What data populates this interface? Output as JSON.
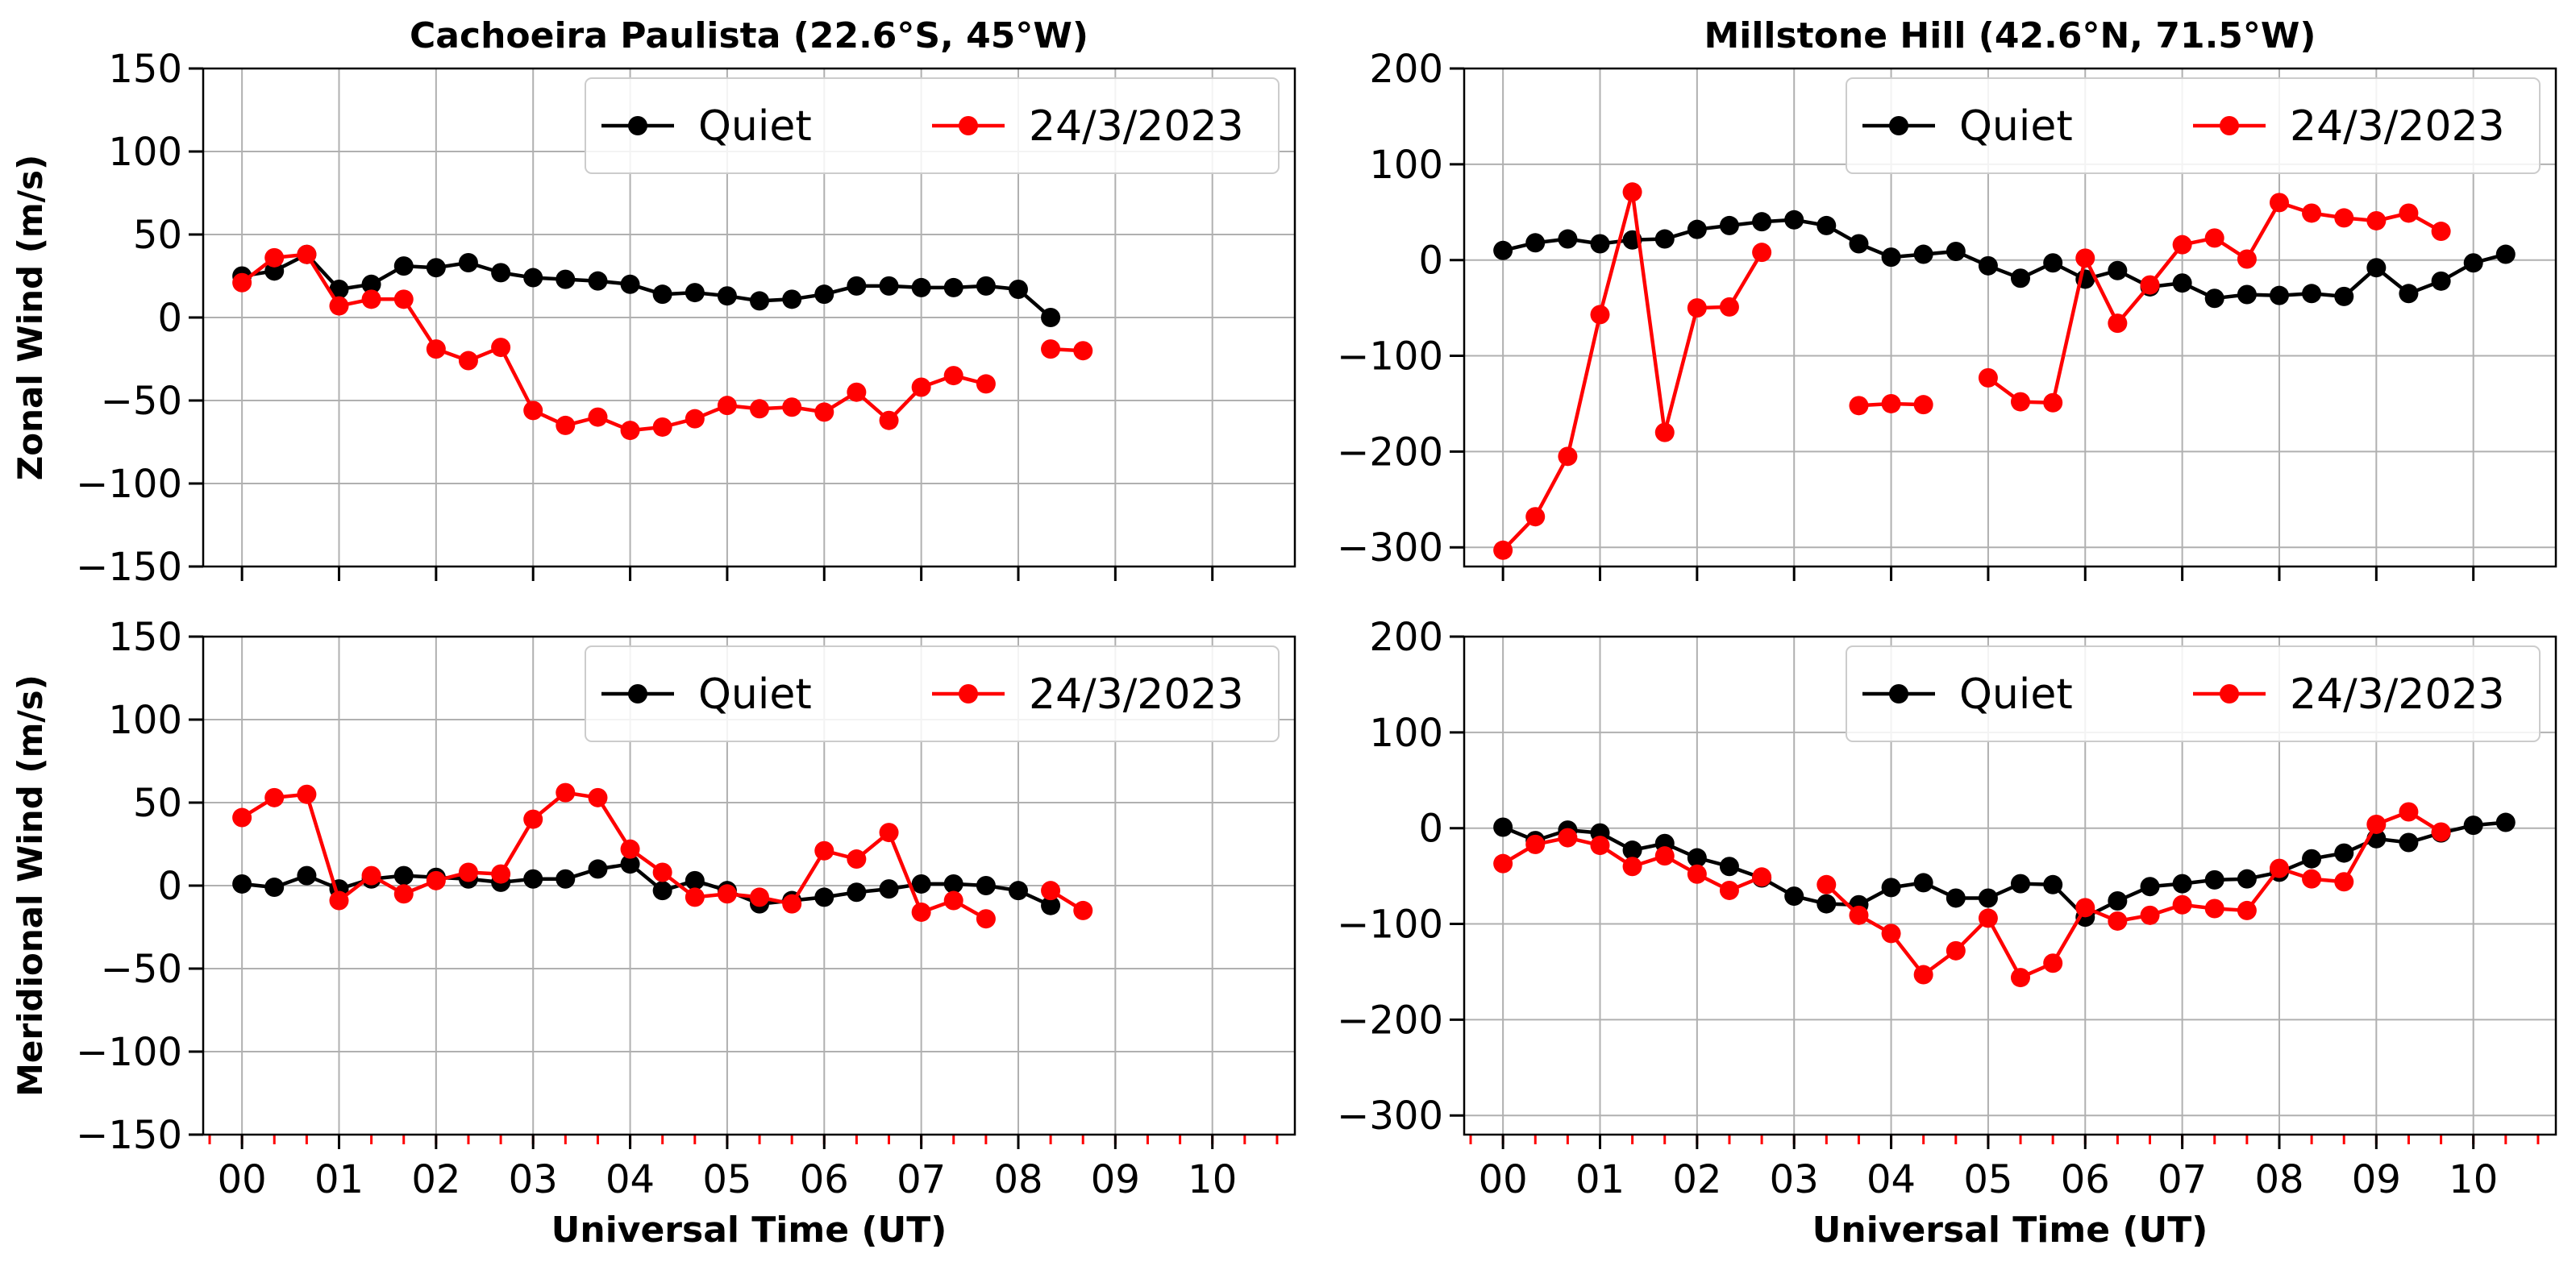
{
  "figure_colors": {
    "quiet": "#000000",
    "storm": "#ff0000",
    "grid": "#b0b0b0"
  },
  "shared_xlabel": "Universal Time (UT)",
  "chart_data": [
    {
      "id": "cp-zonal",
      "type": "line",
      "title": "Cachoeira Paulista (22.6°S, 45°W)",
      "xlabel": "",
      "ylabel": "Zonal Wind (m/s)",
      "xlim": [
        -0.4,
        10.85
      ],
      "ylim": [
        -150,
        150
      ],
      "xticks": [
        0,
        1,
        2,
        3,
        4,
        5,
        6,
        7,
        8,
        9,
        10
      ],
      "xtick_labels": [],
      "yticks": [
        -150,
        -100,
        -50,
        0,
        50,
        100,
        150
      ],
      "ytick_labels": [
        "−150",
        "−100",
        "−50",
        "0",
        "50",
        "100",
        "150"
      ],
      "minor_ticks": false,
      "legend": {
        "position": "top-right",
        "entries": [
          "Quiet",
          "24/3/2023"
        ]
      },
      "series": [
        {
          "name": "Quiet",
          "color": "#000000",
          "x": [
            0,
            0.333,
            0.667,
            1,
            1.333,
            1.667,
            2,
            2.333,
            2.667,
            3,
            3.333,
            3.667,
            4,
            4.333,
            4.667,
            5,
            5.333,
            5.667,
            6,
            6.333,
            6.667,
            7,
            7.333,
            7.667,
            8,
            8.333
          ],
          "y": [
            25,
            28,
            38,
            17,
            20,
            31,
            30,
            33,
            27,
            24,
            23,
            22,
            20,
            14,
            15,
            13,
            10,
            11,
            14,
            19,
            19,
            18,
            18,
            19,
            17,
            0
          ]
        },
        {
          "name": "24/3/2023",
          "color": "#ff0000",
          "x": [
            0,
            0.333,
            0.667,
            1,
            1.333,
            1.667,
            2,
            2.333,
            2.667,
            3,
            3.333,
            3.667,
            4,
            4.333,
            4.667,
            5,
            5.333,
            5.667,
            6,
            6.333,
            6.667,
            7,
            7.333,
            7.667,
            null,
            8.333,
            8.667
          ],
          "y": [
            21,
            36,
            38,
            7,
            11,
            11,
            -19,
            -26,
            -18,
            -56,
            -65,
            -60,
            -68,
            -66,
            -61,
            -53,
            -55,
            -54,
            -57,
            -45,
            -62,
            -42,
            -35,
            -40,
            null,
            -19,
            -20
          ]
        }
      ]
    },
    {
      "id": "mh-zonal",
      "type": "line",
      "title": "Millstone Hill (42.6°N, 71.5°W)",
      "xlabel": "",
      "ylabel": "",
      "xlim": [
        -0.4,
        10.85
      ],
      "ylim": [
        -320,
        200
      ],
      "xticks": [
        0,
        1,
        2,
        3,
        4,
        5,
        6,
        7,
        8,
        9,
        10
      ],
      "xtick_labels": [],
      "yticks": [
        -300,
        -200,
        -100,
        0,
        100,
        200
      ],
      "ytick_labels": [
        "−300",
        "−200",
        "−100",
        "0",
        "100",
        "200"
      ],
      "minor_ticks": false,
      "legend": {
        "position": "top-right",
        "entries": [
          "Quiet",
          "24/3/2023"
        ]
      },
      "series": [
        {
          "name": "Quiet",
          "color": "#000000",
          "x": [
            0,
            0.333,
            0.667,
            1,
            1.333,
            1.667,
            2,
            2.333,
            2.667,
            3,
            3.333,
            3.667,
            4,
            4.333,
            4.667,
            5,
            5.333,
            5.667,
            6,
            6.333,
            6.667,
            7,
            7.333,
            7.667,
            8,
            8.333,
            8.667,
            9,
            9.333,
            9.667,
            10,
            10.333
          ],
          "y": [
            10,
            18,
            22,
            17,
            21,
            22,
            32,
            36,
            40,
            42,
            36,
            17,
            3,
            6,
            9,
            -6,
            -19,
            -3,
            -20,
            -11,
            -28,
            -24,
            -40,
            -36,
            -37,
            -35,
            -38,
            -8,
            -35,
            -22,
            -3,
            6
          ]
        },
        {
          "name": "24/3/2023",
          "color": "#ff0000",
          "x": [
            0,
            0.333,
            0.667,
            1,
            1.333,
            1.667,
            2,
            2.333,
            2.667,
            null,
            3.667,
            4,
            4.333,
            null,
            5,
            5.333,
            5.667,
            6,
            6.333,
            6.667,
            7,
            7.333,
            7.667,
            8,
            8.333,
            8.667,
            9,
            9.333,
            9.667
          ],
          "y": [
            -303,
            -268,
            -205,
            -57,
            71,
            -180,
            -50,
            -49,
            8,
            null,
            -152,
            -150,
            -151,
            null,
            -123,
            -148,
            -149,
            2,
            -66,
            -26,
            16,
            23,
            1,
            60,
            49,
            44,
            41,
            49,
            30
          ]
        }
      ]
    },
    {
      "id": "cp-meridional",
      "type": "line",
      "title": "",
      "xlabel": "Universal Time (UT)",
      "ylabel": "Meridional Wind (m/s)",
      "xlim": [
        -0.4,
        10.85
      ],
      "ylim": [
        -150,
        150
      ],
      "xticks": [
        0,
        1,
        2,
        3,
        4,
        5,
        6,
        7,
        8,
        9,
        10
      ],
      "xtick_labels": [
        "00",
        "01",
        "02",
        "03",
        "04",
        "05",
        "06",
        "07",
        "08",
        "09",
        "10"
      ],
      "yticks": [
        -150,
        -100,
        -50,
        0,
        50,
        100,
        150
      ],
      "ytick_labels": [
        "−150",
        "−100",
        "−50",
        "0",
        "50",
        "100",
        "150"
      ],
      "minor_ticks": true,
      "legend": {
        "position": "top-right",
        "entries": [
          "Quiet",
          "24/3/2023"
        ]
      },
      "series": [
        {
          "name": "Quiet",
          "color": "#000000",
          "x": [
            0,
            0.333,
            0.667,
            1,
            1.333,
            1.667,
            2,
            2.333,
            2.667,
            3,
            3.333,
            3.667,
            4,
            4.333,
            4.667,
            5,
            5.333,
            5.667,
            6,
            6.333,
            6.667,
            7,
            7.333,
            7.667,
            8,
            8.333
          ],
          "y": [
            1,
            -1,
            6,
            -2,
            4,
            6,
            5,
            4,
            2,
            4,
            4,
            10,
            13,
            -3,
            3,
            -3,
            -11,
            -9,
            -7,
            -4,
            -2,
            1,
            1,
            0,
            -3,
            -12
          ]
        },
        {
          "name": "24/3/2023",
          "color": "#ff0000",
          "x": [
            0,
            0.333,
            0.667,
            1,
            1.333,
            1.667,
            2,
            2.333,
            2.667,
            3,
            3.333,
            3.667,
            4,
            4.333,
            4.667,
            5,
            5.333,
            5.667,
            6,
            6.333,
            6.667,
            7,
            7.333,
            7.667,
            null,
            8.333,
            8.667
          ],
          "y": [
            41,
            53,
            55,
            -9,
            6,
            -5,
            3,
            8,
            7,
            40,
            56,
            53,
            22,
            8,
            -7,
            -5,
            -7,
            -11,
            21,
            16,
            32,
            -16,
            -9,
            -20,
            null,
            -3,
            -15
          ]
        }
      ]
    },
    {
      "id": "mh-meridional",
      "type": "line",
      "title": "",
      "xlabel": "Universal Time (UT)",
      "ylabel": "",
      "xlim": [
        -0.4,
        10.85
      ],
      "ylim": [
        -320,
        200
      ],
      "xticks": [
        0,
        1,
        2,
        3,
        4,
        5,
        6,
        7,
        8,
        9,
        10
      ],
      "xtick_labels": [
        "00",
        "01",
        "02",
        "03",
        "04",
        "05",
        "06",
        "07",
        "08",
        "09",
        "10"
      ],
      "yticks": [
        -300,
        -200,
        -100,
        0,
        100,
        200
      ],
      "ytick_labels": [
        "−300",
        "−200",
        "−100",
        "0",
        "100",
        "200"
      ],
      "minor_ticks": true,
      "legend": {
        "position": "top-right",
        "entries": [
          "Quiet",
          "24/3/2023"
        ]
      },
      "series": [
        {
          "name": "Quiet",
          "color": "#000000",
          "x": [
            0,
            0.333,
            0.667,
            1,
            1.333,
            1.667,
            2,
            2.333,
            2.667,
            3,
            3.333,
            3.667,
            4,
            4.333,
            4.667,
            5,
            5.333,
            5.667,
            6,
            6.333,
            6.667,
            7,
            7.333,
            7.667,
            8,
            8.333,
            8.667,
            9,
            9.333,
            9.667,
            10,
            10.333
          ],
          "y": [
            1,
            -13,
            -2,
            -5,
            -23,
            -16,
            -31,
            -40,
            -52,
            -71,
            -79,
            -80,
            -62,
            -57,
            -73,
            -73,
            -58,
            -59,
            -93,
            -76,
            -61,
            -58,
            -54,
            -53,
            -46,
            -32,
            -26,
            -11,
            -15,
            -5,
            3,
            6
          ]
        },
        {
          "name": "24/3/2023",
          "color": "#ff0000",
          "x": [
            0,
            0.333,
            0.667,
            1,
            1.333,
            1.667,
            2,
            2.333,
            2.667,
            null,
            3.333,
            3.667,
            4,
            4.333,
            4.667,
            5,
            5.333,
            5.667,
            6,
            6.333,
            6.667,
            7,
            7.333,
            7.667,
            8,
            8.333,
            8.667,
            9,
            9.333,
            9.667
          ],
          "y": [
            -37,
            -17,
            -10,
            -18,
            -40,
            -29,
            -48,
            -65,
            -51,
            null,
            -59,
            -91,
            -110,
            -153,
            -128,
            -94,
            -156,
            -141,
            -83,
            -97,
            -91,
            -80,
            -84,
            -86,
            -42,
            -53,
            -56,
            4,
            17,
            -4
          ]
        }
      ]
    }
  ]
}
